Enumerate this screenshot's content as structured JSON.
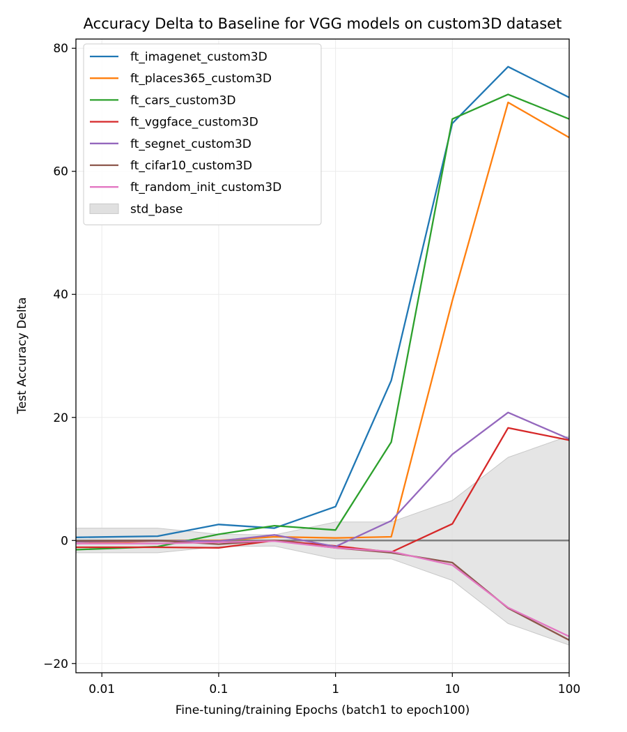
{
  "chart_data": {
    "type": "line",
    "title": "Accuracy Delta to Baseline for VGG models on custom3D dataset",
    "xlabel": "Fine-tuning/training Epochs (batch1 to epoch100)",
    "ylabel": "Test Accuracy Delta",
    "xscale": "log",
    "xlim": [
      0.006,
      100
    ],
    "ylim": [
      -21.5,
      81.5
    ],
    "xticks": [
      0.01,
      0.1,
      1,
      10,
      100
    ],
    "xtick_labels": [
      "0.01",
      "0.1",
      "1",
      "10",
      "100"
    ],
    "yticks": [
      -20,
      0,
      20,
      40,
      60,
      80
    ],
    "ytick_labels": [
      "−20",
      "0",
      "20",
      "40",
      "60",
      "80"
    ],
    "grid": true,
    "legend_position": "top-left",
    "x": [
      0.006,
      0.03,
      0.1,
      0.3,
      1,
      3,
      10,
      30,
      100
    ],
    "series": [
      {
        "name": "ft_imagenet_custom3D",
        "color": "#1f77b4",
        "values": [
          0.5,
          0.7,
          2.6,
          2.0,
          5.5,
          26.0,
          67.8,
          77.0,
          72.0
        ]
      },
      {
        "name": "ft_places365_custom3D",
        "color": "#ff7f0e",
        "values": [
          -0.5,
          -0.1,
          0.0,
          0.6,
          0.4,
          0.6,
          39.0,
          71.2,
          65.5
        ]
      },
      {
        "name": "ft_cars_custom3D",
        "color": "#2ca02c",
        "values": [
          -1.5,
          -1.0,
          1.0,
          2.4,
          1.7,
          16.0,
          68.5,
          72.5,
          68.5
        ]
      },
      {
        "name": "ft_vggface_custom3D",
        "color": "#d62728",
        "values": [
          -1.1,
          -1.1,
          -1.2,
          0.0,
          -0.9,
          -1.9,
          2.7,
          18.3,
          16.3
        ]
      },
      {
        "name": "ft_segnet_custom3D",
        "color": "#9467bd",
        "values": [
          -0.2,
          -0.1,
          -0.1,
          0.9,
          -1.0,
          3.2,
          14.0,
          20.8,
          16.5
        ]
      },
      {
        "name": "ft_cifar10_custom3D",
        "color": "#8c564b",
        "values": [
          -0.1,
          0.0,
          -0.6,
          0.0,
          -1.2,
          -2.0,
          -3.6,
          -11.0,
          -16.2
        ]
      },
      {
        "name": "ft_random_init_custom3D",
        "color": "#e377c2",
        "values": [
          -0.5,
          -0.5,
          -0.3,
          -0.1,
          -1.2,
          -1.8,
          -4.0,
          -10.9,
          -15.6
        ]
      }
    ],
    "baseline": {
      "value": 0,
      "color": "#808080"
    },
    "std_band": {
      "name": "std_base",
      "color": "#e0e0e0",
      "upper": [
        2.0,
        2.0,
        1.0,
        0.9,
        3.0,
        3.0,
        6.5,
        13.5,
        17.0
      ],
      "lower": [
        -2.0,
        -2.0,
        -1.0,
        -0.9,
        -3.0,
        -3.0,
        -6.5,
        -13.5,
        -17.0
      ]
    }
  }
}
